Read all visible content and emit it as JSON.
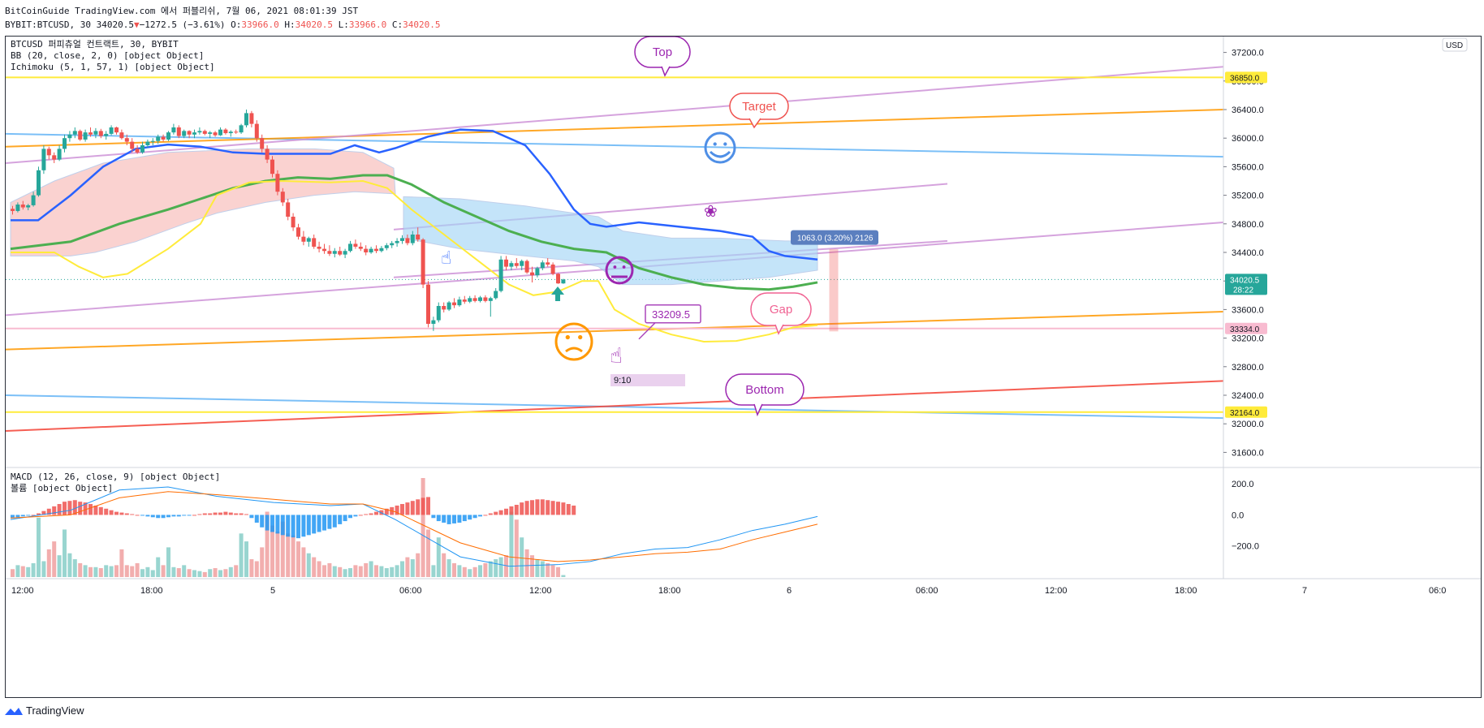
{
  "header": {
    "line1": "BitCoinGuide TradingView.com 에서 퍼블리쉬, 7월 06, 2021 08:01:39 JST",
    "symbol": "BYBIT:BTCUSD, 30",
    "last": "34020.5",
    "change": "−1272.5 (−3.61%)",
    "open_label": "O:",
    "open": "33966.0",
    "high_label": "H:",
    "high": "34020.5",
    "low_label": "L:",
    "low": "33966.0",
    "close_label": "C:",
    "close": "34020.5"
  },
  "legend": {
    "line1": "BTCUSD 퍼피츄얼 컨트랙트, 30, BYBIT",
    "line2": "BB (20, close, 2, 0) [object Object]",
    "line3": "Ichimoku (5, 1, 57, 1) [object Object]",
    "macd": "MACD (12, 26, close, 9) [object Object]",
    "volume": "볼륨 [object Object]"
  },
  "currency": "USD",
  "footer": {
    "brand": "TradingView"
  },
  "colors": {
    "up": "#26a69a",
    "down": "#ef5350",
    "bb": "#2962ff",
    "kijun": "#4caf50",
    "tenkan": "#ffeb3b",
    "cloud_up": "#a5d6f7",
    "cloud_down": "#f8bbb7",
    "orange": "#ff9800",
    "purple_line": "#ce93d8",
    "blue_line": "#64b5f6",
    "red_line": "#f44336",
    "level_yellow": "#ffeb3b",
    "level_pink": "#f8bbd0"
  },
  "chart_data": {
    "type": "candlestick",
    "ylim": [
      31400,
      37400
    ],
    "price_ticks": [
      "37200.0",
      "36800.0",
      "36400.0",
      "36000.0",
      "35600.0",
      "35200.0",
      "34800.0",
      "34400.0",
      "34000.0",
      "33600.0",
      "33200.0",
      "32800.0",
      "32400.0",
      "32000.0",
      "31600.0"
    ],
    "time_ticks": [
      "12:00",
      "18:00",
      "5",
      "06:00",
      "12:00",
      "18:00",
      "6",
      "06:00",
      "12:00",
      "18:00",
      "7",
      "06:0"
    ],
    "price_badges": [
      {
        "label": "36850.0",
        "value": 36850,
        "color": "#ffeb3b"
      },
      {
        "label": "34020.5",
        "sub": "28:22",
        "value": 34020.5,
        "color": "#26a69a"
      },
      {
        "label": "33334.0",
        "value": 33334,
        "color": "#f8bbd0"
      },
      {
        "label": "32164.0",
        "value": 32164,
        "color": "#ffeb3b"
      }
    ],
    "horizontal_levels": [
      36850,
      33334,
      32164
    ],
    "measure_label": "1063.0 (3.20%) 2126",
    "annotations": {
      "top": "Top",
      "target": "Target",
      "bottom": "Bottom",
      "gap": "Gap",
      "price_callout": "33209.5",
      "time_label": "9:10"
    },
    "macd_ticks": [
      "200.0",
      "0.0",
      "−200.0"
    ],
    "macd_range": [
      -400,
      300
    ],
    "candles": [
      [
        35010,
        35050,
        34930,
        34980
      ],
      [
        34980,
        35100,
        34960,
        35070
      ],
      [
        35070,
        35120,
        35000,
        35030
      ],
      [
        35030,
        35080,
        34990,
        35060
      ],
      [
        35060,
        35250,
        35040,
        35200
      ],
      [
        35200,
        35600,
        35180,
        35550
      ],
      [
        35550,
        35900,
        35500,
        35850
      ],
      [
        35850,
        35880,
        35700,
        35760
      ],
      [
        35760,
        35800,
        35650,
        35700
      ],
      [
        35700,
        35900,
        35680,
        35850
      ],
      [
        35850,
        36050,
        35800,
        36000
      ],
      [
        36000,
        36100,
        35950,
        36050
      ],
      [
        36050,
        36150,
        36000,
        36100
      ],
      [
        36100,
        36120,
        35960,
        35980
      ],
      [
        35980,
        36120,
        35950,
        36080
      ],
      [
        36080,
        36150,
        36020,
        36050
      ],
      [
        36050,
        36140,
        36000,
        36100
      ],
      [
        36100,
        36130,
        36000,
        36030
      ],
      [
        36030,
        36100,
        35980,
        36060
      ],
      [
        36060,
        36180,
        36040,
        36150
      ],
      [
        36150,
        36160,
        36050,
        36080
      ],
      [
        36080,
        36120,
        35980,
        36000
      ],
      [
        36000,
        36050,
        35900,
        35950
      ],
      [
        35950,
        36000,
        35800,
        35850
      ],
      [
        35850,
        35900,
        35780,
        35800
      ],
      [
        35800,
        35950,
        35780,
        35900
      ],
      [
        35900,
        35980,
        35860,
        35950
      ],
      [
        35950,
        36000,
        35900,
        35960
      ],
      [
        35960,
        36050,
        35920,
        36020
      ],
      [
        36020,
        36050,
        35950,
        35980
      ],
      [
        35980,
        36100,
        35960,
        36080
      ],
      [
        36080,
        36200,
        36050,
        36150
      ],
      [
        36150,
        36180,
        36000,
        36030
      ],
      [
        36030,
        36120,
        36000,
        36100
      ],
      [
        36100,
        36110,
        36000,
        36050
      ],
      [
        36050,
        36120,
        36000,
        36080
      ],
      [
        36080,
        36150,
        36050,
        36100
      ],
      [
        36100,
        36120,
        36040,
        36060
      ],
      [
        36060,
        36100,
        36000,
        36080
      ],
      [
        36080,
        36100,
        36020,
        36040
      ],
      [
        36040,
        36150,
        36030,
        36120
      ],
      [
        36120,
        36140,
        36050,
        36070
      ],
      [
        36070,
        36110,
        36020,
        36090
      ],
      [
        36090,
        36120,
        36060,
        36080
      ],
      [
        36080,
        36200,
        36060,
        36180
      ],
      [
        36180,
        36400,
        36150,
        36350
      ],
      [
        36350,
        36380,
        36150,
        36200
      ],
      [
        36200,
        36250,
        35950,
        36000
      ],
      [
        36000,
        36050,
        35800,
        35850
      ],
      [
        35850,
        35900,
        35650,
        35700
      ],
      [
        35700,
        35750,
        35450,
        35500
      ],
      [
        35500,
        35550,
        35200,
        35250
      ],
      [
        35250,
        35300,
        35050,
        35100
      ],
      [
        35100,
        35150,
        34850,
        34900
      ],
      [
        34900,
        34950,
        34700,
        34750
      ],
      [
        34750,
        34800,
        34580,
        34620
      ],
      [
        34620,
        34700,
        34500,
        34550
      ],
      [
        34550,
        34620,
        34480,
        34600
      ],
      [
        34600,
        34650,
        34450,
        34480
      ],
      [
        34480,
        34550,
        34400,
        34450
      ],
      [
        34450,
        34520,
        34380,
        34420
      ],
      [
        34420,
        34500,
        34350,
        34380
      ],
      [
        34380,
        34460,
        34330,
        34420
      ],
      [
        34420,
        34480,
        34350,
        34370
      ],
      [
        34370,
        34450,
        34320,
        34420
      ],
      [
        34420,
        34560,
        34400,
        34520
      ],
      [
        34520,
        34580,
        34450,
        34480
      ],
      [
        34480,
        34540,
        34420,
        34450
      ],
      [
        34450,
        34500,
        34360,
        34400
      ],
      [
        34400,
        34480,
        34380,
        34450
      ],
      [
        34450,
        34500,
        34390,
        34420
      ],
      [
        34420,
        34490,
        34400,
        34460
      ],
      [
        34460,
        34530,
        34430,
        34500
      ],
      [
        34500,
        34560,
        34460,
        34530
      ],
      [
        34530,
        34600,
        34480,
        34560
      ],
      [
        34560,
        34640,
        34520,
        34600
      ],
      [
        34600,
        34650,
        34500,
        34530
      ],
      [
        34530,
        34700,
        34500,
        34650
      ],
      [
        34650,
        34750,
        34550,
        34580
      ],
      [
        34580,
        34600,
        33900,
        33950
      ],
      [
        33950,
        34000,
        33350,
        33400
      ],
      [
        33400,
        33500,
        33300,
        33450
      ],
      [
        33450,
        33700,
        33420,
        33650
      ],
      [
        33650,
        33700,
        33560,
        33600
      ],
      [
        33600,
        33720,
        33580,
        33700
      ],
      [
        33700,
        33760,
        33620,
        33660
      ],
      [
        33660,
        33780,
        33640,
        33740
      ],
      [
        33740,
        33790,
        33680,
        33710
      ],
      [
        33710,
        33790,
        33690,
        33760
      ],
      [
        33760,
        33800,
        33700,
        33720
      ],
      [
        33720,
        33790,
        33700,
        33770
      ],
      [
        33770,
        33800,
        33700,
        33720
      ],
      [
        33720,
        33780,
        33500,
        33760
      ],
      [
        33760,
        33900,
        33740,
        33860
      ],
      [
        33860,
        34350,
        33840,
        34300
      ],
      [
        34300,
        34350,
        34150,
        34200
      ],
      [
        34200,
        34280,
        34150,
        34250
      ],
      [
        34250,
        34320,
        34180,
        34210
      ],
      [
        34210,
        34300,
        34150,
        34280
      ],
      [
        34280,
        34300,
        34100,
        34120
      ],
      [
        34120,
        34200,
        33980,
        34080
      ],
      [
        34080,
        34200,
        34050,
        34180
      ],
      [
        34180,
        34290,
        34150,
        34260
      ],
      [
        34260,
        34320,
        34200,
        34230
      ],
      [
        34230,
        34260,
        34080,
        34100
      ],
      [
        34100,
        34110,
        33960,
        33966
      ],
      [
        33966,
        34030,
        33960,
        34020.5
      ]
    ],
    "macd_hist": [
      -20,
      -15,
      -10,
      -5,
      0,
      10,
      25,
      40,
      55,
      70,
      85,
      90,
      95,
      85,
      80,
      70,
      60,
      50,
      40,
      30,
      20,
      15,
      10,
      5,
      0,
      -5,
      -10,
      -15,
      -20,
      -20,
      -15,
      -10,
      -10,
      -5,
      -5,
      0,
      5,
      10,
      10,
      15,
      15,
      20,
      15,
      10,
      10,
      5,
      -20,
      -50,
      -80,
      -100,
      -110,
      -120,
      -130,
      -140,
      -145,
      -150,
      -140,
      -130,
      -120,
      -110,
      -100,
      -90,
      -80,
      -60,
      -40,
      -20,
      -10,
      0,
      5,
      10,
      20,
      30,
      40,
      50,
      60,
      70,
      80,
      90,
      100,
      110,
      115,
      -20,
      -40,
      -50,
      -60,
      -55,
      -50,
      -40,
      -30,
      -20,
      -10,
      0,
      10,
      20,
      30,
      40,
      55,
      65,
      80,
      90,
      95,
      100,
      100,
      95,
      90,
      85,
      80,
      70,
      60
    ],
    "volume": [
      40,
      60,
      55,
      50,
      70,
      300,
      80,
      140,
      180,
      110,
      240,
      120,
      90,
      70,
      60,
      50,
      50,
      45,
      60,
      55,
      60,
      140,
      60,
      55,
      70,
      40,
      50,
      35,
      100,
      60,
      150,
      50,
      45,
      60,
      40,
      35,
      30,
      25,
      40,
      45,
      35,
      40,
      50,
      60,
      220,
      180,
      90,
      80,
      150,
      330,
      260,
      230,
      280,
      220,
      210,
      180,
      150,
      120,
      100,
      80,
      60,
      70,
      55,
      50,
      40,
      45,
      60,
      55,
      70,
      80,
      60,
      55,
      45,
      50,
      60,
      80,
      100,
      90,
      120,
      500,
      240,
      60,
      200,
      120,
      90,
      70,
      60,
      50,
      40,
      50,
      60,
      70,
      80,
      90,
      100,
      110,
      330,
      290,
      200,
      140,
      110,
      90,
      80,
      70,
      60,
      50,
      10
    ]
  }
}
